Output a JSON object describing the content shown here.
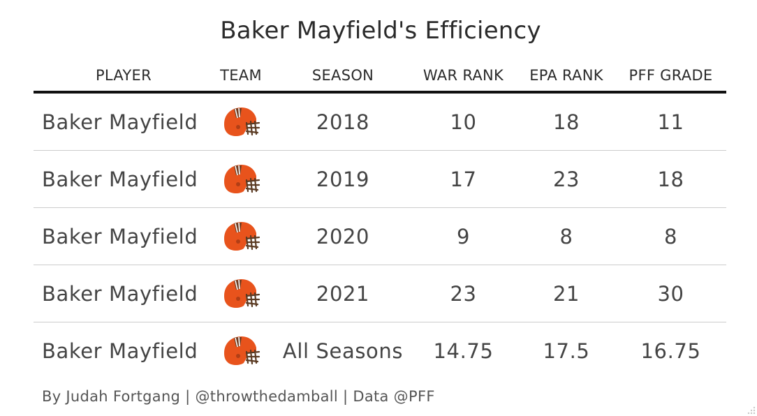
{
  "chart_data": {
    "type": "table",
    "title": "Baker Mayfield's Efficiency",
    "columns": [
      "PLAYER",
      "TEAM",
      "SEASON",
      "WAR RANK",
      "EPA RANK",
      "PFF GRADE"
    ],
    "rows": [
      {
        "player": "Baker Mayfield",
        "team_icon": "browns-helmet-icon",
        "season": "2018",
        "war_rank": "10",
        "epa_rank": "18",
        "pff_grade": "11"
      },
      {
        "player": "Baker Mayfield",
        "team_icon": "browns-helmet-icon",
        "season": "2019",
        "war_rank": "17",
        "epa_rank": "23",
        "pff_grade": "18"
      },
      {
        "player": "Baker Mayfield",
        "team_icon": "browns-helmet-icon",
        "season": "2020",
        "war_rank": "9",
        "epa_rank": "8",
        "pff_grade": "8"
      },
      {
        "player": "Baker Mayfield",
        "team_icon": "browns-helmet-icon",
        "season": "2021",
        "war_rank": "23",
        "epa_rank": "21",
        "pff_grade": "30"
      },
      {
        "player": "Baker Mayfield",
        "team_icon": "browns-helmet-icon",
        "season": "All Seasons",
        "war_rank": "14.75",
        "epa_rank": "17.5",
        "pff_grade": "16.75"
      }
    ],
    "footer": "By Judah Fortgang | @throwthedamball | Data @PFF",
    "colors": {
      "helmet_orange": "#E8531C",
      "facemask_brown": "#5a3a22",
      "header_rule": "#111111",
      "row_divider": "#cccccc"
    }
  }
}
